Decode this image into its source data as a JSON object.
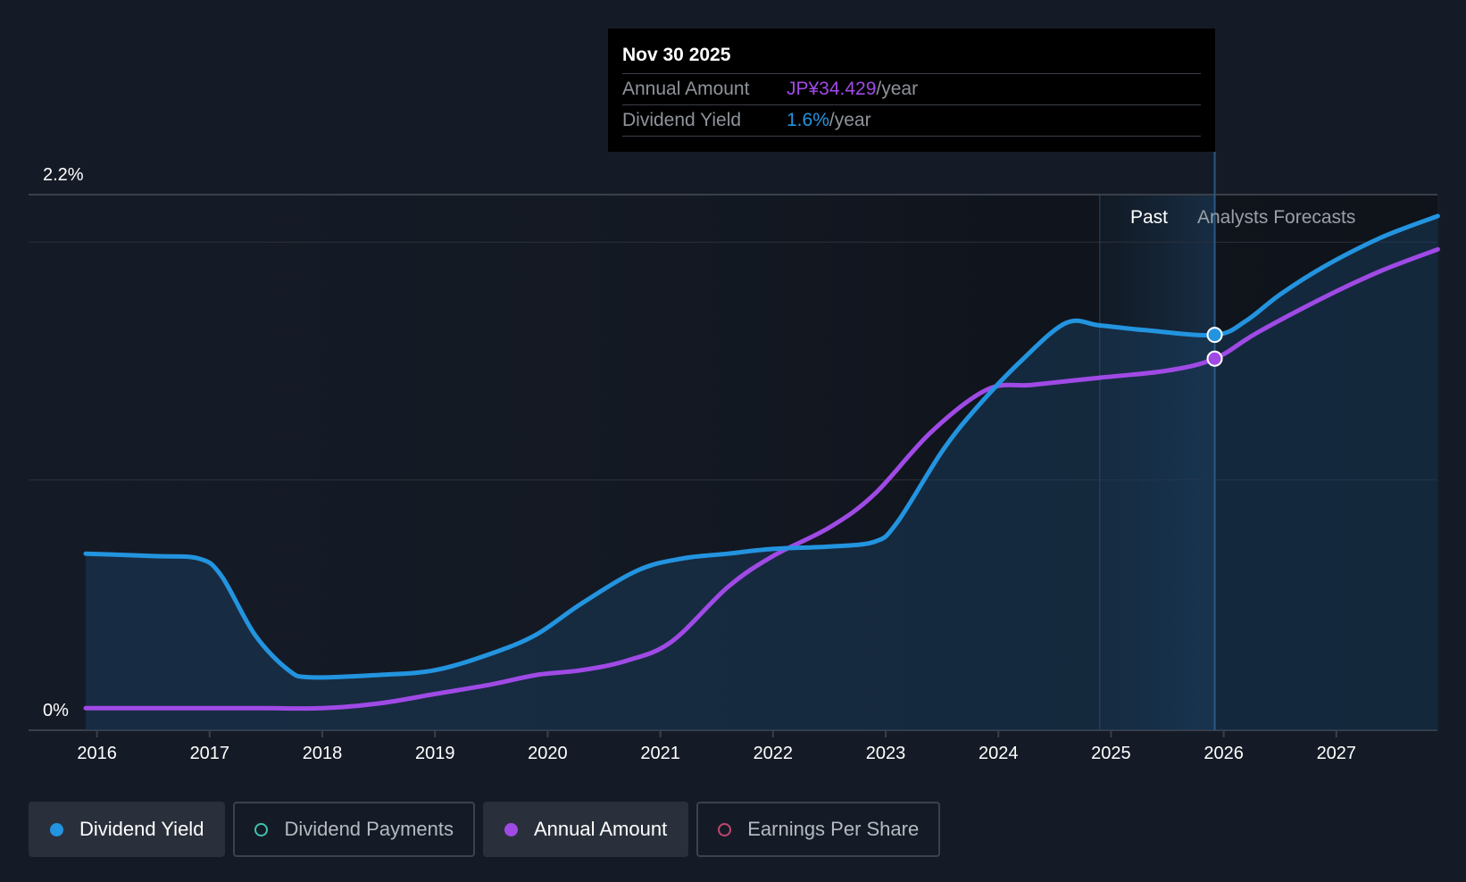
{
  "chart_data": {
    "type": "line",
    "y_axis": {
      "labels": [
        "2.2%",
        "0%"
      ],
      "min": 0,
      "max": 2.2,
      "unit": "%"
    },
    "x_axis": {
      "tick_labels": [
        "2016",
        "2017",
        "2018",
        "2019",
        "2020",
        "2021",
        "2022",
        "2023",
        "2024",
        "2025",
        "2026",
        "2027"
      ],
      "range": [
        2015.9,
        2027.9
      ]
    },
    "regions": {
      "past_label": "Past",
      "forecast_label": "Analysts Forecasts",
      "past_start": 2024.9,
      "divider": 2025.92
    },
    "series": [
      {
        "name": "Dividend Yield",
        "color": "#2394df",
        "points": [
          [
            2015.9,
            0.69
          ],
          [
            2016.5,
            0.68
          ],
          [
            2016.9,
            0.67
          ],
          [
            2017.1,
            0.6
          ],
          [
            2017.4,
            0.35
          ],
          [
            2017.7,
            0.2
          ],
          [
            2017.9,
            0.17
          ],
          [
            2018.5,
            0.18
          ],
          [
            2019.0,
            0.2
          ],
          [
            2019.5,
            0.27
          ],
          [
            2019.9,
            0.35
          ],
          [
            2020.3,
            0.48
          ],
          [
            2020.8,
            0.62
          ],
          [
            2021.2,
            0.67
          ],
          [
            2021.6,
            0.69
          ],
          [
            2022.0,
            0.71
          ],
          [
            2022.5,
            0.72
          ],
          [
            2022.9,
            0.74
          ],
          [
            2023.1,
            0.82
          ],
          [
            2023.5,
            1.12
          ],
          [
            2023.8,
            1.3
          ],
          [
            2024.2,
            1.5
          ],
          [
            2024.6,
            1.66
          ],
          [
            2024.9,
            1.65
          ],
          [
            2025.3,
            1.63
          ],
          [
            2025.92,
            1.61
          ],
          [
            2026.2,
            1.67
          ],
          [
            2026.5,
            1.78
          ],
          [
            2026.9,
            1.9
          ],
          [
            2027.4,
            2.02
          ],
          [
            2027.9,
            2.11
          ]
        ]
      },
      {
        "name": "Annual Amount",
        "color": "#a04ae6",
        "points": [
          [
            2015.9,
            0.04
          ],
          [
            2016.5,
            0.04
          ],
          [
            2017.0,
            0.04
          ],
          [
            2017.5,
            0.04
          ],
          [
            2018.0,
            0.04
          ],
          [
            2018.5,
            0.06
          ],
          [
            2019.0,
            0.1
          ],
          [
            2019.5,
            0.14
          ],
          [
            2019.9,
            0.18
          ],
          [
            2020.3,
            0.2
          ],
          [
            2020.7,
            0.24
          ],
          [
            2021.1,
            0.32
          ],
          [
            2021.6,
            0.55
          ],
          [
            2022.0,
            0.68
          ],
          [
            2022.5,
            0.8
          ],
          [
            2022.9,
            0.94
          ],
          [
            2023.4,
            1.2
          ],
          [
            2023.9,
            1.38
          ],
          [
            2024.3,
            1.4
          ],
          [
            2024.9,
            1.43
          ],
          [
            2025.5,
            1.46
          ],
          [
            2025.92,
            1.51
          ],
          [
            2026.3,
            1.62
          ],
          [
            2026.9,
            1.77
          ],
          [
            2027.4,
            1.88
          ],
          [
            2027.9,
            1.97
          ]
        ]
      }
    ],
    "highlight_x": 2025.92,
    "tooltip": {
      "date": "Nov 30 2025",
      "rows": [
        {
          "label": "Annual Amount",
          "value": "JP¥34.429",
          "unit": "/year",
          "color": "#a04ae6"
        },
        {
          "label": "Dividend Yield",
          "value": "1.6%",
          "unit": "/year",
          "color": "#2394df"
        }
      ]
    },
    "legend": [
      {
        "label": "Dividend Yield",
        "color": "#2394df",
        "active": true
      },
      {
        "label": "Dividend Payments",
        "color": "#3fc1b0",
        "active": false
      },
      {
        "label": "Annual Amount",
        "color": "#a04ae6",
        "active": true
      },
      {
        "label": "Earnings Per Share",
        "color": "#c0456f",
        "active": false
      }
    ]
  }
}
